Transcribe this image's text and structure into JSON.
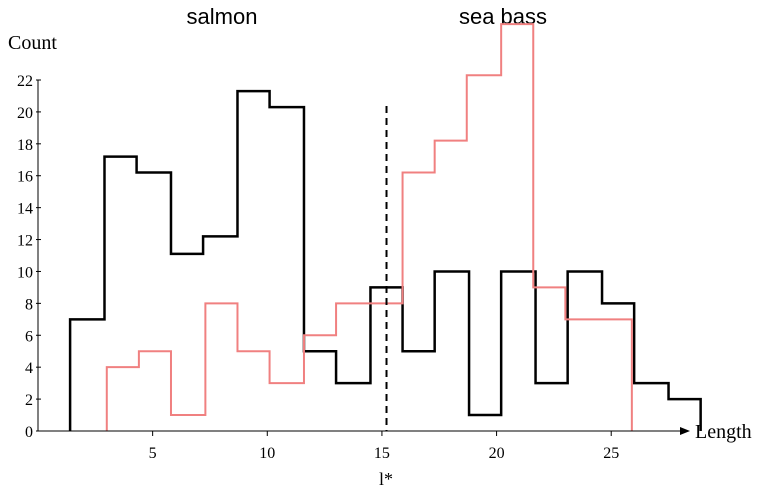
{
  "chart_data": {
    "type": "histogram",
    "title": "",
    "xlabel": "Length",
    "ylabel": "Count",
    "xlim": [
      0,
      28
    ],
    "ylim": [
      0,
      22
    ],
    "xticks": [
      5,
      10,
      15,
      20,
      25
    ],
    "yticks": [
      0,
      2,
      4,
      6,
      8,
      10,
      12,
      14,
      16,
      18,
      20,
      22
    ],
    "threshold": {
      "label": "l*",
      "value": 15.2
    },
    "series": [
      {
        "name": "salmon",
        "color": "#000000",
        "bins": [
          [
            1.4,
            2.9,
            7
          ],
          [
            2.9,
            4.3,
            17.2
          ],
          [
            4.3,
            5.8,
            16.2
          ],
          [
            5.8,
            7.2,
            11.1
          ],
          [
            7.2,
            8.7,
            12.2
          ],
          [
            8.7,
            10.1,
            21.3
          ],
          [
            10.1,
            11.6,
            20.3
          ],
          [
            11.6,
            13.0,
            5
          ],
          [
            13.0,
            14.5,
            3
          ],
          [
            14.5,
            15.9,
            9
          ],
          [
            15.9,
            17.3,
            5
          ],
          [
            17.3,
            18.8,
            10
          ],
          [
            18.8,
            20.2,
            1
          ],
          [
            20.2,
            21.7,
            10
          ],
          [
            21.7,
            23.1,
            3
          ],
          [
            23.1,
            24.6,
            10
          ],
          [
            24.6,
            26.0,
            8
          ],
          [
            26.0,
            27.5,
            3
          ],
          [
            27.5,
            28.9,
            2
          ]
        ]
      },
      {
        "name": "sea bass",
        "color": "#f08080",
        "bins": [
          [
            3.0,
            4.4,
            4
          ],
          [
            4.4,
            5.8,
            5
          ],
          [
            5.8,
            7.3,
            1
          ],
          [
            7.3,
            8.7,
            8
          ],
          [
            8.7,
            10.1,
            5
          ],
          [
            10.1,
            11.6,
            3
          ],
          [
            11.6,
            13.0,
            6
          ],
          [
            13.0,
            14.4,
            8
          ],
          [
            14.4,
            15.9,
            8
          ],
          [
            15.9,
            17.3,
            16.2
          ],
          [
            17.3,
            18.7,
            18.2
          ],
          [
            18.7,
            20.2,
            22.3
          ],
          [
            20.2,
            21.6,
            25.5
          ],
          [
            21.6,
            23.0,
            9
          ],
          [
            23.0,
            24.5,
            7
          ],
          [
            24.5,
            25.9,
            7
          ]
        ]
      }
    ]
  }
}
